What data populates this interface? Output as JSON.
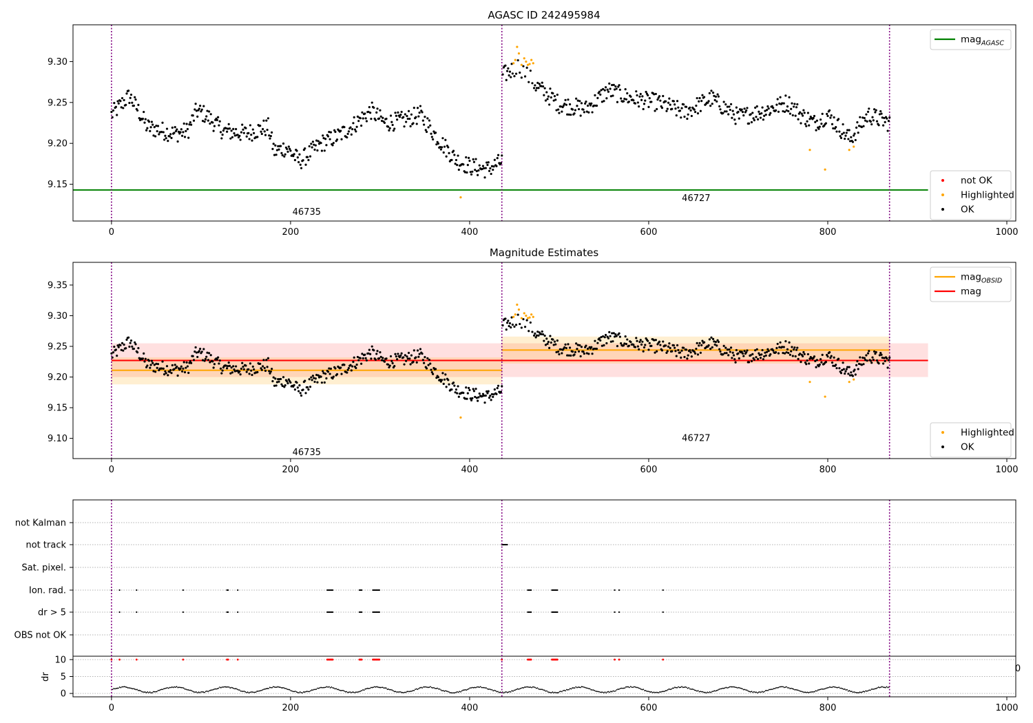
{
  "chart_data": [
    {
      "type": "scatter",
      "title": "AGASC ID 242495984",
      "xlim": [
        -43,
        1010
      ],
      "ylim": [
        9.105,
        9.345
      ],
      "xticks": [
        "0",
        "200",
        "400",
        "600",
        "800",
        "1000"
      ],
      "xtick_values": [
        0,
        200,
        400,
        600,
        800,
        1000
      ],
      "yticks": [
        "9.15",
        "9.20",
        "9.25",
        "9.30"
      ],
      "ytick_values": [
        9.15,
        9.2,
        9.25,
        9.3
      ],
      "obs_boundaries": [
        0,
        436,
        869
      ],
      "obs_labels": [
        {
          "text": "46735",
          "x": 218,
          "y": 9.116
        },
        {
          "text": "46727",
          "x": 653,
          "y": 9.133
        }
      ],
      "hlines": [
        {
          "y": 9.143,
          "x": [
            -43,
            912
          ],
          "color": "#008000"
        }
      ],
      "legend_upper": {
        "position": "upper-right",
        "entries": [
          {
            "label": "mag",
            "sub": "AGASC",
            "color": "#008000",
            "kind": "line"
          }
        ]
      },
      "legend_lower": {
        "position": "lower-right",
        "entries": [
          {
            "label": "not OK",
            "color": "#ff0000",
            "kind": "dot"
          },
          {
            "label": "Highlighted",
            "color": "#ffa500",
            "kind": "dot"
          },
          {
            "label": "OK",
            "color": "#000000",
            "kind": "dot"
          }
        ]
      },
      "series": [
        {
          "label": "OK",
          "color": "#000000",
          "generated": true
        },
        {
          "label": "Highlighted",
          "color": "#ffa500",
          "points": [
            [
              390,
              9.134
            ],
            [
              449,
              9.298
            ],
            [
              451,
              9.302
            ],
            [
              453,
              9.318
            ],
            [
              455,
              9.31
            ],
            [
              458,
              9.296
            ],
            [
              461,
              9.304
            ],
            [
              463,
              9.3
            ],
            [
              465,
              9.296
            ],
            [
              467,
              9.297
            ],
            [
              469,
              9.302
            ],
            [
              471,
              9.298
            ],
            [
              780,
              9.192
            ],
            [
              797,
              9.168
            ],
            [
              824,
              9.192
            ],
            [
              829,
              9.196
            ]
          ]
        }
      ]
    },
    {
      "type": "scatter",
      "title": "Magnitude Estimates",
      "xlim": [
        -43,
        1010
      ],
      "ylim": [
        9.067,
        9.387
      ],
      "xticks": [
        "0",
        "200",
        "400",
        "600",
        "800",
        "1000"
      ],
      "xtick_values": [
        0,
        200,
        400,
        600,
        800,
        1000
      ],
      "yticks": [
        "9.10",
        "9.15",
        "9.20",
        "9.25",
        "9.30",
        "9.35"
      ],
      "ytick_values": [
        9.1,
        9.15,
        9.2,
        9.25,
        9.3,
        9.35
      ],
      "obs_boundaries": [
        0,
        436,
        869
      ],
      "obs_labels": [
        {
          "text": "46735",
          "x": 218,
          "y": 9.077
        },
        {
          "text": "46727",
          "x": 653,
          "y": 9.1
        }
      ],
      "bands": [
        {
          "x": [
            0,
            912
          ],
          "y": [
            9.2,
            9.255
          ],
          "color": "#ff0000",
          "opacity": 0.12
        },
        {
          "x": [
            0,
            436
          ],
          "y": [
            9.188,
            9.232
          ],
          "color": "#ffa500",
          "opacity": 0.18
        },
        {
          "x": [
            436,
            869
          ],
          "y": [
            9.222,
            9.266
          ],
          "color": "#ffa500",
          "opacity": 0.18
        }
      ],
      "hlines": [
        {
          "y": 9.211,
          "x": [
            0,
            436
          ],
          "color": "#ffa500"
        },
        {
          "y": 9.244,
          "x": [
            436,
            869
          ],
          "color": "#ffa500"
        },
        {
          "y": 9.227,
          "x": [
            0,
            912
          ],
          "color": "#ff0000"
        }
      ],
      "legend_upper": {
        "position": "upper-right",
        "entries": [
          {
            "label": "mag",
            "sub": "OBSID",
            "color": "#ffa500",
            "kind": "line"
          },
          {
            "label": "mag",
            "sub": "",
            "color": "#ff0000",
            "kind": "line"
          }
        ]
      },
      "legend_lower": {
        "position": "lower-right",
        "entries": [
          {
            "label": "Highlighted",
            "color": "#ffa500",
            "kind": "dot"
          },
          {
            "label": "OK",
            "color": "#000000",
            "kind": "dot"
          }
        ]
      }
    },
    {
      "type": "scatter",
      "title": "",
      "xlim": [
        -43,
        1010
      ],
      "categories": [
        "OBS not OK",
        "dr > 5",
        "Ion. rad.",
        "Sat. pixel.",
        "not track",
        "not Kalman"
      ],
      "flags": {
        "not track": [
          [
            436,
            443
          ]
        ],
        "dr > 5": [
          [
            0
          ],
          [
            9
          ],
          [
            28
          ],
          [
            80
          ],
          [
            129,
            131
          ],
          [
            141
          ],
          [
            241,
            248
          ],
          [
            277,
            280
          ],
          [
            292,
            300
          ],
          [
            436
          ],
          [
            465,
            469
          ],
          [
            492,
            498
          ],
          [
            562
          ],
          [
            567
          ],
          [
            616
          ]
        ],
        "Ion. rad.": [
          [
            0
          ],
          [
            9
          ],
          [
            28
          ],
          [
            80
          ],
          [
            129,
            131
          ],
          [
            141
          ],
          [
            241,
            248
          ],
          [
            277,
            280
          ],
          [
            292,
            300
          ],
          [
            465,
            469
          ],
          [
            492,
            498
          ],
          [
            562
          ],
          [
            567
          ],
          [
            616
          ]
        ]
      }
    },
    {
      "type": "line",
      "ylabel": "dr",
      "xlim": [
        -43,
        1010
      ],
      "ylim": [
        -1,
        11
      ],
      "yticks": [
        "0",
        "5",
        "10"
      ],
      "ytick_values": [
        0,
        5,
        10
      ],
      "xticks": [
        "0",
        "200",
        "400",
        "600",
        "800",
        "1000"
      ],
      "xtick_values": [
        0,
        200,
        400,
        600,
        800,
        1000
      ],
      "extra_tick": "0",
      "hline_10": true,
      "flag_markers_color": "#ff0000"
    }
  ]
}
